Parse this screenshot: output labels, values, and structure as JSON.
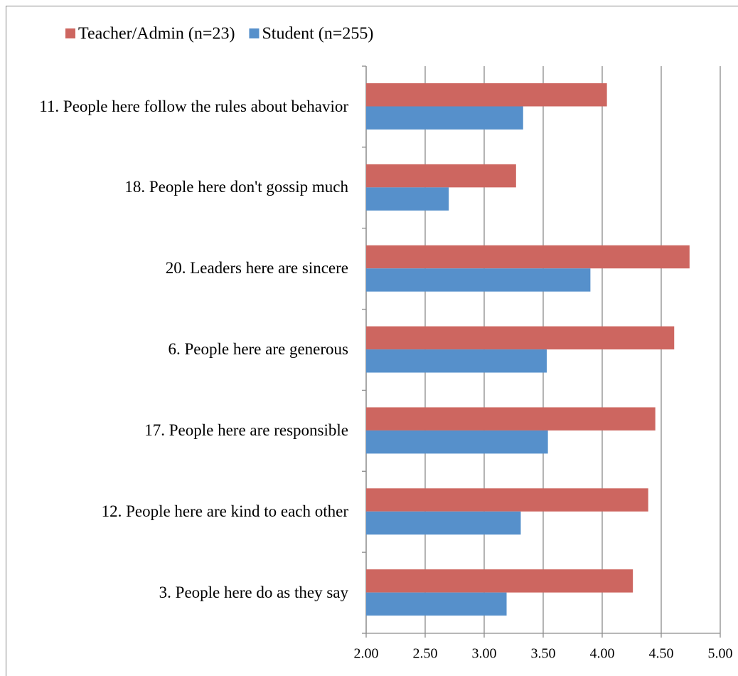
{
  "chart_data": {
    "type": "hbar",
    "categories": [
      "11. People here follow the rules about behavior",
      "18. People here don't gossip much",
      "20. Leaders here are sincere",
      "6. People here are generous",
      "17. People here are responsible",
      "12. People here are kind to each other",
      "3. People here do as they say"
    ],
    "series": [
      {
        "name": "Teacher/Admin (n=23)",
        "color": "#cd6660",
        "values": [
          4.04,
          3.27,
          4.74,
          4.61,
          4.45,
          4.39,
          4.26
        ]
      },
      {
        "name": "Student (n=255)",
        "color": "#5690cb",
        "values": [
          3.33,
          2.7,
          3.9,
          3.53,
          3.54,
          3.31,
          3.19
        ]
      }
    ],
    "xlim": [
      2,
      5
    ],
    "xticks": [
      {
        "value": 2,
        "label": "2.00"
      },
      {
        "value": 2.5,
        "label": "2.50"
      },
      {
        "value": 3,
        "label": "3.00"
      },
      {
        "value": 3.5,
        "label": "3.50"
      },
      {
        "value": 4,
        "label": "4.00"
      },
      {
        "value": 4.5,
        "label": "4.50"
      },
      {
        "value": 5,
        "label": "5.00"
      }
    ],
    "grid": true,
    "legend": "top"
  }
}
